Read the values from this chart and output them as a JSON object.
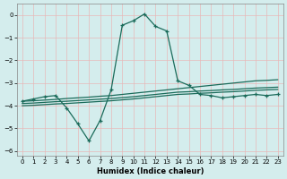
{
  "xlabel": "Humidex (Indice chaleur)",
  "bg_color": "#d4eded",
  "grid_color": "#c8dede",
  "line_color": "#1a6b5a",
  "xlim": [
    -0.5,
    23.5
  ],
  "ylim": [
    -6.2,
    0.5
  ],
  "yticks": [
    0,
    -1,
    -2,
    -3,
    -4,
    -5,
    -6
  ],
  "xticks": [
    0,
    1,
    2,
    3,
    4,
    5,
    6,
    7,
    8,
    9,
    10,
    11,
    12,
    13,
    14,
    15,
    16,
    17,
    18,
    19,
    20,
    21,
    22,
    23
  ],
  "series_main": {
    "x": [
      0,
      1,
      2,
      3,
      4,
      5,
      6,
      7,
      8,
      9,
      10,
      11,
      12,
      13,
      14,
      15,
      16,
      17,
      18,
      19,
      20,
      21,
      22,
      23
    ],
    "y": [
      -3.8,
      -3.7,
      -3.6,
      -3.55,
      -4.1,
      -4.8,
      -5.55,
      -4.65,
      -3.3,
      -0.45,
      -0.25,
      0.05,
      -0.5,
      -0.7,
      -2.9,
      -3.1,
      -3.5,
      -3.55,
      -3.65,
      -3.6,
      -3.55,
      -3.5,
      -3.55,
      -3.5
    ]
  },
  "series_b1": {
    "x": [
      0,
      1,
      2,
      3,
      4,
      5,
      6,
      7,
      8,
      9,
      10,
      11,
      12,
      13,
      14,
      15,
      16,
      17,
      18,
      19,
      20,
      21,
      22,
      23
    ],
    "y": [
      -3.8,
      -3.78,
      -3.75,
      -3.72,
      -3.68,
      -3.65,
      -3.62,
      -3.58,
      -3.55,
      -3.5,
      -3.45,
      -3.4,
      -3.35,
      -3.3,
      -3.25,
      -3.2,
      -3.15,
      -3.1,
      -3.05,
      -3.0,
      -2.95,
      -2.9,
      -2.88,
      -2.85
    ]
  },
  "series_b2": {
    "x": [
      0,
      1,
      2,
      3,
      4,
      5,
      6,
      7,
      8,
      9,
      10,
      11,
      12,
      13,
      14,
      15,
      16,
      17,
      18,
      19,
      20,
      21,
      22,
      23
    ],
    "y": [
      -3.9,
      -3.88,
      -3.85,
      -3.82,
      -3.8,
      -3.77,
      -3.74,
      -3.71,
      -3.68,
      -3.64,
      -3.6,
      -3.55,
      -3.5,
      -3.45,
      -3.4,
      -3.38,
      -3.35,
      -3.33,
      -3.3,
      -3.28,
      -3.25,
      -3.22,
      -3.2,
      -3.18
    ]
  },
  "series_b3": {
    "x": [
      0,
      1,
      2,
      3,
      4,
      5,
      6,
      7,
      8,
      9,
      10,
      11,
      12,
      13,
      14,
      15,
      16,
      17,
      18,
      19,
      20,
      21,
      22,
      23
    ],
    "y": [
      -4.0,
      -3.98,
      -3.95,
      -3.92,
      -3.9,
      -3.87,
      -3.84,
      -3.81,
      -3.78,
      -3.74,
      -3.7,
      -3.65,
      -3.6,
      -3.55,
      -3.5,
      -3.48,
      -3.45,
      -3.43,
      -3.4,
      -3.38,
      -3.35,
      -3.32,
      -3.3,
      -3.28
    ]
  }
}
